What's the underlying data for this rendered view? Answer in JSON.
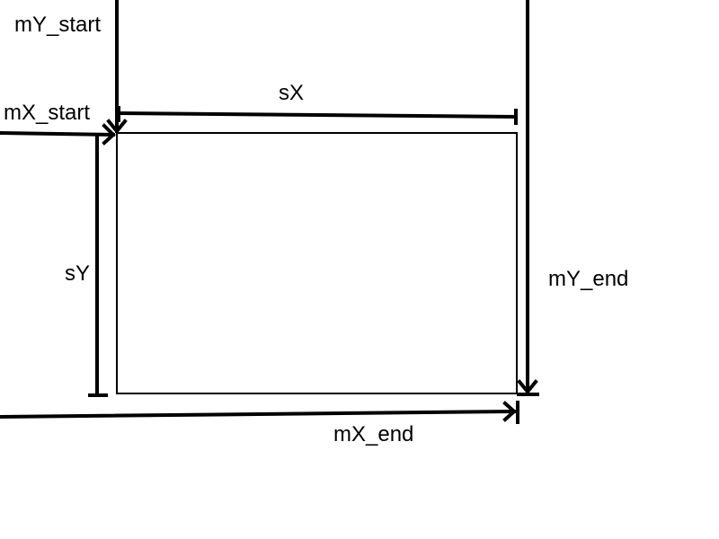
{
  "labels": {
    "mY_start": "mY_start",
    "mX_start": "mX_start",
    "sX": "sX",
    "sY": "sY",
    "mY_end": "mY_end",
    "mX_end": "mX_end"
  },
  "colors": {
    "line": "#000000",
    "background": "#ffffff"
  }
}
